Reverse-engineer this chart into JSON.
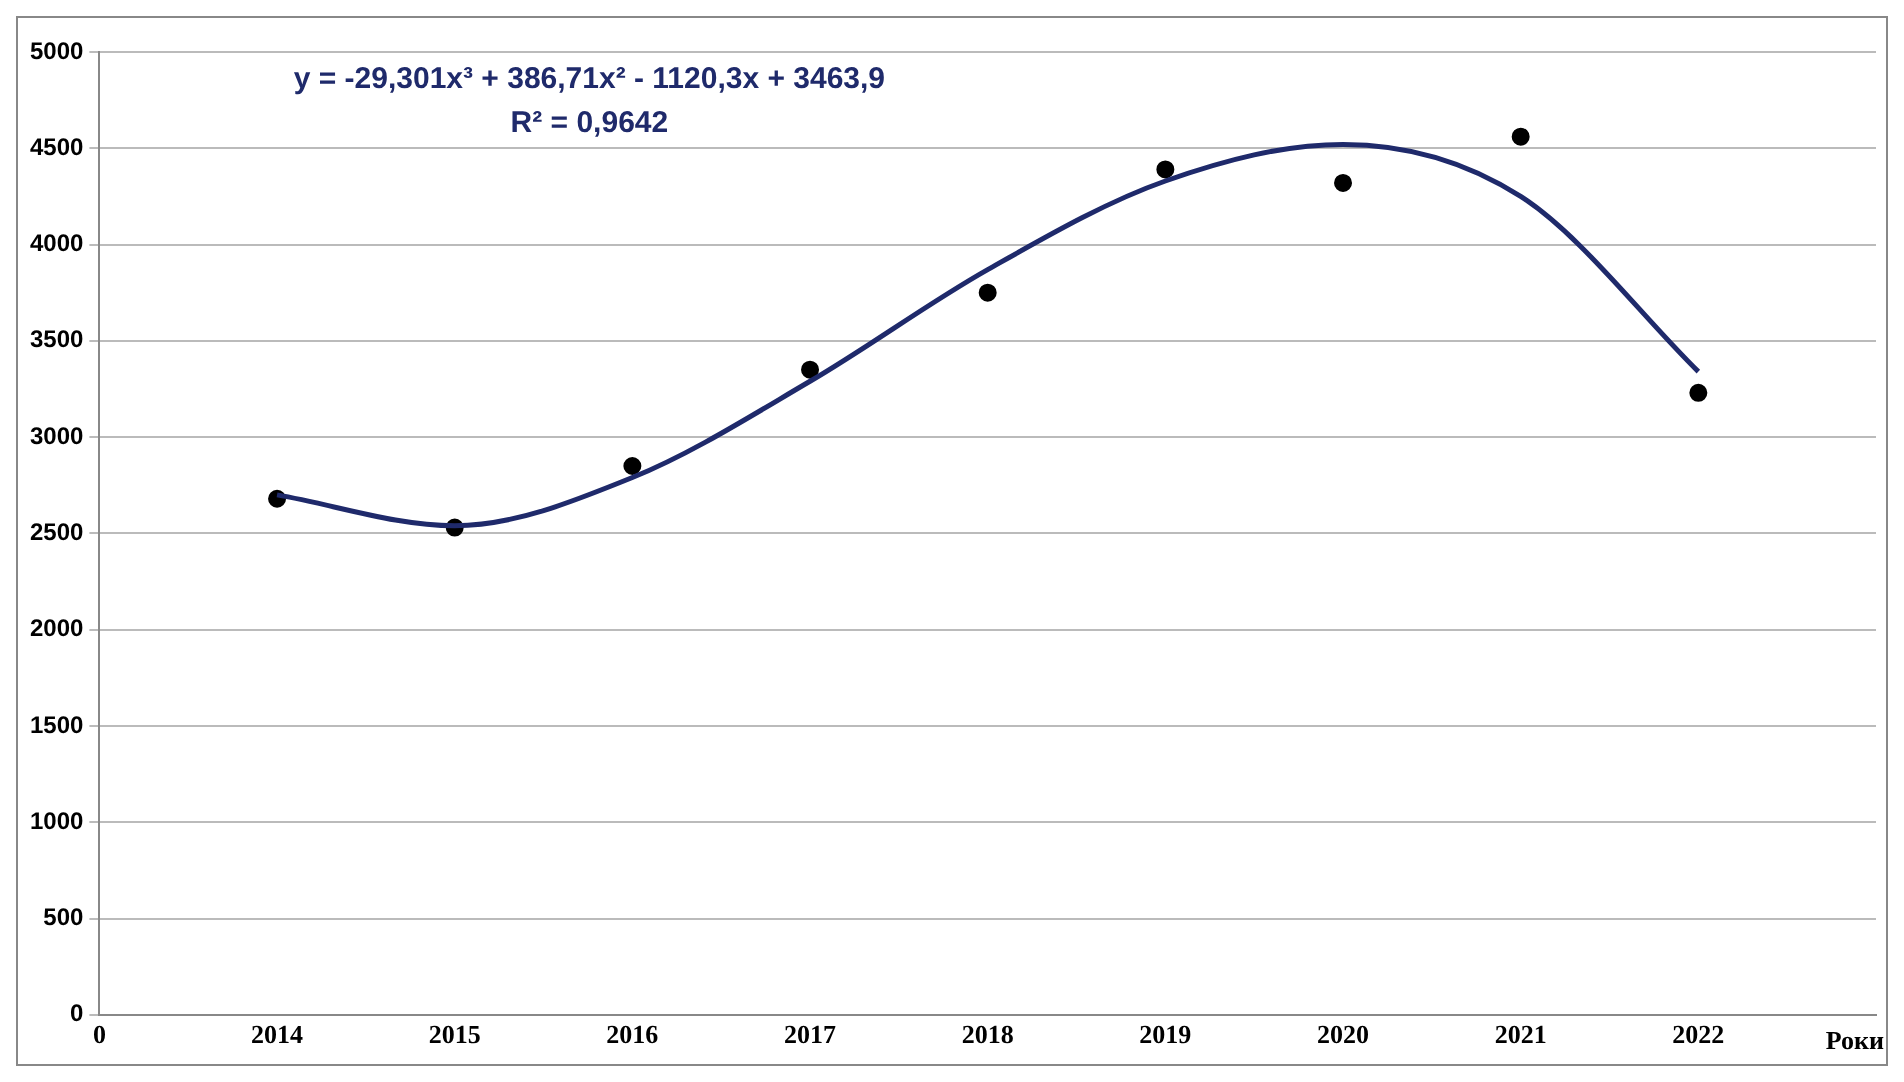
{
  "chart_data": {
    "type": "scatter",
    "xlabel": "Роки",
    "annotations": [
      "y = -29,301x³ + 386,71x² - 1120,3x + 3463,9",
      "R² = 0,9642"
    ],
    "categories": [
      "0",
      "2014",
      "2015",
      "2016",
      "2017",
      "2018",
      "2019",
      "2020",
      "2021",
      "2022",
      null
    ],
    "ylim": [
      0,
      5000
    ],
    "yticks": [
      0,
      500,
      1000,
      1500,
      2000,
      2500,
      3000,
      3500,
      4000,
      4500,
      5000
    ],
    "grid": "y",
    "legend": false,
    "marker": "circle",
    "series": [
      {
        "type": "scatter",
        "color": "#000000",
        "values": [
          null,
          2680,
          2530,
          2850,
          3350,
          3750,
          4390,
          4320,
          4560,
          3230,
          null
        ]
      },
      {
        "type": "line",
        "color": "#1f2a6b",
        "marker": "none",
        "values": [
          null,
          2700,
          2540,
          2790,
          3290,
          3870,
          4330,
          4520,
          4250,
          3340,
          null
        ]
      }
    ]
  }
}
